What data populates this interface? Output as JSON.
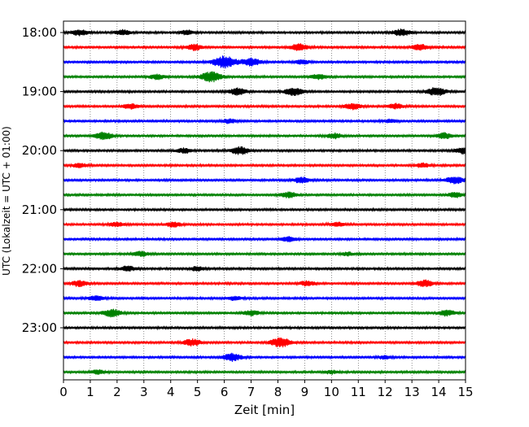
{
  "chart_data": {
    "type": "line",
    "title": "",
    "xlabel": "Zeit  [min]",
    "ylabel": "UTC (Lokalzeit = UTC + 01:00)",
    "xlim": [
      0,
      15
    ],
    "x_ticks": [
      0,
      1,
      2,
      3,
      4,
      5,
      6,
      7,
      8,
      9,
      10,
      11,
      12,
      13,
      14,
      15
    ],
    "grid": "vertical dotted at each minute",
    "y_ticks": [
      "18:00",
      "19:00",
      "20:00",
      "21:00",
      "22:00",
      "23:00"
    ],
    "y_tick_rows": [
      0,
      4,
      8,
      12,
      16,
      20
    ],
    "row_start_times": [
      "18:00",
      "18:15",
      "18:30",
      "18:45",
      "19:00",
      "19:15",
      "19:30",
      "19:45",
      "20:00",
      "20:15",
      "20:30",
      "20:45",
      "21:00",
      "21:15",
      "21:30",
      "21:45",
      "22:00",
      "22:15",
      "22:30",
      "22:45",
      "23:00",
      "23:15",
      "23:30",
      "23:45"
    ],
    "color_cycle": [
      "#000000",
      "#ff0000",
      "#0000ff",
      "#008000"
    ],
    "row_duration_min": 15,
    "events": [
      {
        "row": 0,
        "t": 0.6,
        "amp": 0.35
      },
      {
        "row": 0,
        "t": 2.2,
        "amp": 0.3
      },
      {
        "row": 0,
        "t": 4.6,
        "amp": 0.25
      },
      {
        "row": 0,
        "t": 12.6,
        "amp": 0.4
      },
      {
        "row": 1,
        "t": 4.9,
        "amp": 0.35
      },
      {
        "row": 1,
        "t": 8.8,
        "amp": 0.4
      },
      {
        "row": 1,
        "t": 13.3,
        "amp": 0.35
      },
      {
        "row": 2,
        "t": 6.0,
        "amp": 0.7
      },
      {
        "row": 2,
        "t": 7.0,
        "amp": 0.45
      },
      {
        "row": 2,
        "t": 8.9,
        "amp": 0.25
      },
      {
        "row": 3,
        "t": 5.5,
        "amp": 0.6
      },
      {
        "row": 3,
        "t": 3.5,
        "amp": 0.3
      },
      {
        "row": 3,
        "t": 9.5,
        "amp": 0.3
      },
      {
        "row": 4,
        "t": 6.5,
        "amp": 0.4
      },
      {
        "row": 4,
        "t": 8.6,
        "amp": 0.45
      },
      {
        "row": 4,
        "t": 13.9,
        "amp": 0.5
      },
      {
        "row": 5,
        "t": 2.5,
        "amp": 0.3
      },
      {
        "row": 5,
        "t": 10.8,
        "amp": 0.35
      },
      {
        "row": 5,
        "t": 12.4,
        "amp": 0.3
      },
      {
        "row": 6,
        "t": 6.2,
        "amp": 0.25
      },
      {
        "row": 6,
        "t": 12.2,
        "amp": 0.2
      },
      {
        "row": 7,
        "t": 1.5,
        "amp": 0.45
      },
      {
        "row": 7,
        "t": 10.1,
        "amp": 0.3
      },
      {
        "row": 7,
        "t": 14.2,
        "amp": 0.35
      },
      {
        "row": 8,
        "t": 6.6,
        "amp": 0.45
      },
      {
        "row": 8,
        "t": 4.5,
        "amp": 0.3
      },
      {
        "row": 8,
        "t": 15.0,
        "amp": 0.45
      },
      {
        "row": 9,
        "t": 0.6,
        "amp": 0.25
      },
      {
        "row": 9,
        "t": 13.4,
        "amp": 0.25
      },
      {
        "row": 10,
        "t": 8.9,
        "amp": 0.35
      },
      {
        "row": 10,
        "t": 14.6,
        "amp": 0.45
      },
      {
        "row": 11,
        "t": 8.4,
        "amp": 0.35
      },
      {
        "row": 11,
        "t": 14.6,
        "amp": 0.3
      },
      {
        "row": 13,
        "t": 2.0,
        "amp": 0.25
      },
      {
        "row": 13,
        "t": 4.1,
        "amp": 0.3
      },
      {
        "row": 13,
        "t": 10.2,
        "amp": 0.25
      },
      {
        "row": 14,
        "t": 8.4,
        "amp": 0.3
      },
      {
        "row": 15,
        "t": 2.9,
        "amp": 0.3
      },
      {
        "row": 15,
        "t": 10.6,
        "amp": 0.2
      },
      {
        "row": 16,
        "t": 2.4,
        "amp": 0.3
      },
      {
        "row": 16,
        "t": 5.0,
        "amp": 0.25
      },
      {
        "row": 17,
        "t": 0.6,
        "amp": 0.35
      },
      {
        "row": 17,
        "t": 13.5,
        "amp": 0.4
      },
      {
        "row": 17,
        "t": 9.1,
        "amp": 0.3
      },
      {
        "row": 18,
        "t": 1.2,
        "amp": 0.3
      },
      {
        "row": 18,
        "t": 6.4,
        "amp": 0.25
      },
      {
        "row": 19,
        "t": 1.8,
        "amp": 0.45
      },
      {
        "row": 19,
        "t": 7.0,
        "amp": 0.3
      },
      {
        "row": 19,
        "t": 14.3,
        "amp": 0.35
      },
      {
        "row": 21,
        "t": 4.8,
        "amp": 0.4
      },
      {
        "row": 21,
        "t": 8.1,
        "amp": 0.55
      },
      {
        "row": 22,
        "t": 6.3,
        "amp": 0.45
      },
      {
        "row": 22,
        "t": 12.0,
        "amp": 0.2
      },
      {
        "row": 23,
        "t": 1.3,
        "amp": 0.25
      },
      {
        "row": 23,
        "t": 10.0,
        "amp": 0.2
      }
    ]
  }
}
